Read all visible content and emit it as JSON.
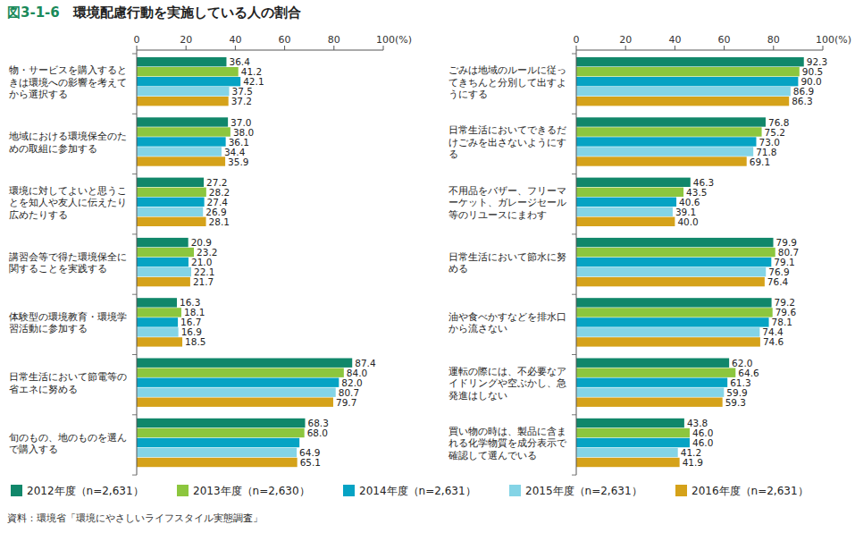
{
  "chart_data": [
    {
      "type": "bar",
      "orientation": "horizontal",
      "title": "図3-1-6　環境配慮行動を実施している人の割合",
      "annotations": [
        "資料：環境省「環境にやさしいライフスタイル実態調査」"
      ],
      "categories": [
        "物・サービスを購入するときは環境への影響を考えてから選択する",
        "地域における環境保全のための取組に参加する",
        "環境に対してよいと思うことを知人や友人に伝えたり広めたりする",
        "講習会等で得た環境保全に関することを実践する",
        "体験型の環境教育・環境学習活動に参加する",
        "日常生活において節電等の省エネに努める",
        "旬のもの、地のものを選んで購入する"
      ],
      "series": [
        {
          "name": "2012年度（n=2,631）",
          "color": "#11876a",
          "values": [
            36.4,
            37.0,
            27.2,
            20.9,
            16.3,
            87.4,
            68.3
          ]
        },
        {
          "name": "2013年度（n=2,630）",
          "color": "#8cc63e",
          "values": [
            41.2,
            38.0,
            28.2,
            23.2,
            18.1,
            84.0,
            68.0
          ]
        },
        {
          "name": "2014年度（n=2,631）",
          "color": "#06a3c4",
          "values": [
            42.1,
            36.1,
            27.4,
            21.0,
            16.7,
            82.0,
            66.0
          ],
          "value_labels": [
            "42.1",
            "36.1",
            "27.4",
            "21.0",
            "16.7",
            "82.0",
            null
          ]
        },
        {
          "name": "2015年度（n=2,631）",
          "color": "#84d4e6",
          "values": [
            37.5,
            34.4,
            26.9,
            22.1,
            16.9,
            80.7,
            64.9
          ]
        },
        {
          "name": "2016年度（n=2,631）",
          "color": "#d5a21a",
          "values": [
            37.2,
            35.9,
            28.1,
            21.7,
            18.5,
            79.7,
            65.1
          ]
        }
      ],
      "xlim": [
        0,
        100
      ],
      "xticks": [
        0,
        20,
        40,
        60,
        80,
        {
          "value": 100,
          "label": "100(%)"
        }
      ],
      "grid": false,
      "data_labels": true,
      "legend": "bottom"
    },
    {
      "type": "bar",
      "orientation": "horizontal",
      "categories": [
        "ごみは地域のルールに従ってきちんと分別して出すようにする",
        "日常生活においてできるだけごみを出さないようにする",
        "不用品をバザー、フリーマーケット、ガレージセール等のリユースにまわす",
        "日常生活において節水に努める",
        "油や食べかすなどを排水口から流さない",
        "運転の際には、不必要なアイドリングや空ぶかし、急発進はしない",
        "買い物の時は、製品に含まれる化学物質を成分表示で確認して選んでいる"
      ],
      "series": [
        {
          "color": "#11876a",
          "values": [
            92.3,
            76.8,
            46.3,
            79.9,
            79.2,
            62.0,
            43.8
          ]
        },
        {
          "color": "#8cc63e",
          "values": [
            90.5,
            75.2,
            43.5,
            80.7,
            79.6,
            64.6,
            46.0
          ]
        },
        {
          "color": "#06a3c4",
          "values": [
            90.0,
            73.0,
            40.6,
            79.1,
            78.1,
            61.3,
            46.0
          ]
        },
        {
          "color": "#84d4e6",
          "values": [
            86.9,
            71.8,
            39.1,
            76.9,
            74.4,
            59.9,
            41.2
          ]
        },
        {
          "color": "#d5a21a",
          "values": [
            86.3,
            69.1,
            40.0,
            76.4,
            74.6,
            59.3,
            41.9
          ]
        }
      ],
      "xlim": [
        0,
        100
      ],
      "xticks": [
        0,
        20,
        40,
        60,
        80,
        {
          "value": 100,
          "label": "100(%)"
        }
      ],
      "grid": false,
      "data_labels": true
    }
  ]
}
